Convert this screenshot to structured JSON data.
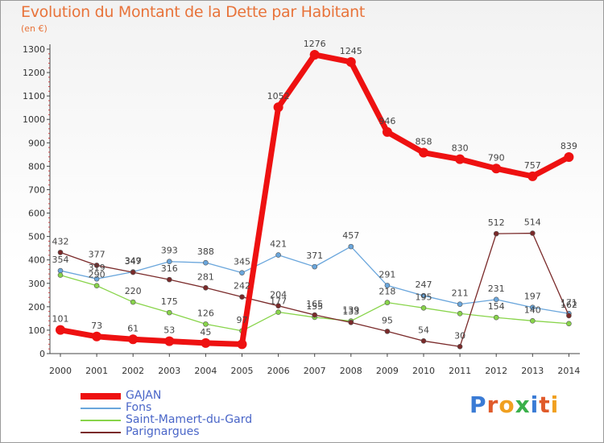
{
  "title": "Evolution du Montant de la Dette par Habitant",
  "subtitle": "(en €)",
  "logo": {
    "text": "Proxiti",
    "colors": [
      "#3a7bd5",
      "#e05a2a",
      "#f0a020",
      "#3ab04a",
      "#3a7bd5",
      "#e05a2a",
      "#f0a020"
    ]
  },
  "chart_data": {
    "type": "line",
    "categories": [
      "2000",
      "2001",
      "2002",
      "2003",
      "2004",
      "2005",
      "2006",
      "2007",
      "2008",
      "2009",
      "2010",
      "2011",
      "2012",
      "2013",
      "2014"
    ],
    "ylim": [
      0,
      1300
    ],
    "yticks": [
      0,
      100,
      200,
      300,
      400,
      500,
      600,
      700,
      800,
      900,
      1000,
      1100,
      1200,
      1300
    ],
    "grid": false,
    "legend_position": "bottom-left",
    "series": [
      {
        "name": "GAJAN",
        "color": "#ee1111",
        "width": 7,
        "marker": 6,
        "values": [
          101,
          73,
          61,
          53,
          45,
          40,
          1052,
          1276,
          1245,
          946,
          858,
          830,
          790,
          757,
          839
        ],
        "labels": [
          "101",
          "73",
          "61",
          "53",
          "45",
          "",
          "1052",
          "1276",
          "1245",
          "946",
          "858",
          "830",
          "790",
          "757",
          "839"
        ]
      },
      {
        "name": "Fons",
        "color": "#6aa6dc",
        "width": 1.3,
        "marker": 3,
        "values": [
          354,
          319,
          349,
          393,
          388,
          345,
          421,
          371,
          457,
          291,
          247,
          211,
          231,
          197,
          171
        ],
        "labels": [
          "354",
          "319",
          "349",
          "393",
          "388",
          "345",
          "421",
          "371",
          "457",
          "291",
          "247",
          "211",
          "231",
          "197",
          "171"
        ]
      },
      {
        "name": "Saint-Mamert-du-Gard",
        "color": "#88d44a",
        "width": 1.3,
        "marker": 3,
        "values": [
          335,
          290,
          220,
          175,
          126,
          97,
          177,
          155,
          139,
          218,
          195,
          171,
          154,
          140,
          128
        ],
        "labels": [
          "",
          "290",
          "220",
          "175",
          "126",
          "97",
          "177",
          "155",
          "139",
          "218",
          "195",
          "",
          "154",
          "140",
          ""
        ]
      },
      {
        "name": "Parignargues",
        "color": "#7a2a2a",
        "width": 1.3,
        "marker": 3,
        "values": [
          432,
          377,
          347,
          316,
          281,
          242,
          204,
          165,
          133,
          95,
          54,
          30,
          512,
          514,
          162
        ],
        "labels": [
          "432",
          "377",
          "347",
          "316",
          "281",
          "242",
          "204",
          "165",
          "133",
          "95",
          "54",
          "30",
          "512",
          "514",
          "162"
        ]
      }
    ]
  }
}
